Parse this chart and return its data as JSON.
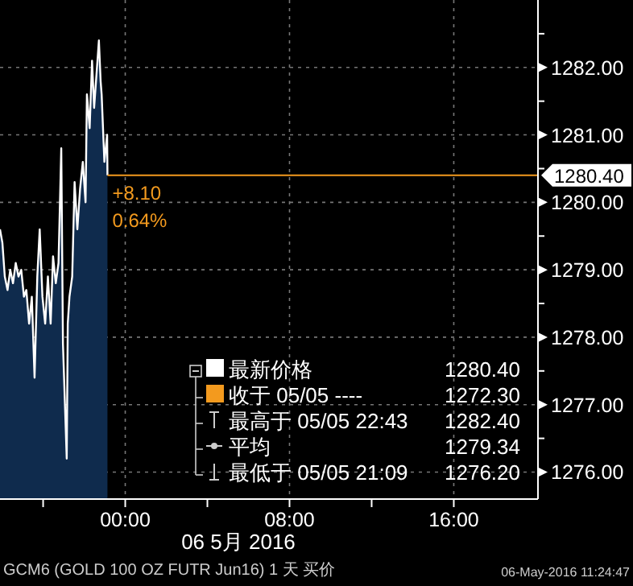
{
  "chart_data": {
    "type": "area",
    "xlabel": "06 5月 2016",
    "x": [
      "2016-05-05T17:54",
      "2016-05-05T18:01",
      "2016-05-05T18:08",
      "2016-05-05T18:16",
      "2016-05-05T18:24",
      "2016-05-05T18:32",
      "2016-05-05T18:40",
      "2016-05-05T18:48",
      "2016-05-05T18:56",
      "2016-05-05T19:04",
      "2016-05-05T19:11",
      "2016-05-05T19:19",
      "2016-05-05T19:27",
      "2016-05-05T19:35",
      "2016-05-05T19:43",
      "2016-05-05T19:50",
      "2016-05-05T19:58",
      "2016-05-05T20:06",
      "2016-05-05T20:14",
      "2016-05-05T20:22",
      "2016-05-05T20:29",
      "2016-05-05T20:37",
      "2016-05-05T20:45",
      "2016-05-05T20:53",
      "2016-05-05T20:58",
      "2016-05-05T21:09",
      "2016-05-05T21:12",
      "2016-05-05T21:17",
      "2016-05-05T21:25",
      "2016-05-05T21:32",
      "2016-05-05T21:40",
      "2016-05-05T21:48",
      "2016-05-05T21:56",
      "2016-05-05T22:04",
      "2016-05-05T22:08",
      "2016-05-05T22:16",
      "2016-05-05T22:23",
      "2016-05-05T22:29",
      "2016-05-05T22:43",
      "2016-05-05T22:48",
      "2016-05-05T22:51",
      "2016-05-05T22:59",
      "2016-05-05T23:07",
      "2016-05-05T23:08"
    ],
    "series": [
      {
        "name": "最新价格",
        "color": "#ffffff",
        "values": [
          1279.6,
          1279.4,
          1278.9,
          1278.7,
          1279,
          1278.8,
          1279.1,
          1278.9,
          1279,
          1278.6,
          1278.7,
          1278.2,
          1278.6,
          1277.4,
          1278.9,
          1279.6,
          1278.6,
          1278.2,
          1278.9,
          1278.2,
          1279.2,
          1278.8,
          1279.1,
          1280.8,
          1277.9,
          1276.2,
          1278.2,
          1278.6,
          1278.9,
          1280.3,
          1279.6,
          1280.2,
          1280.6,
          1280,
          1281.6,
          1281.1,
          1282.1,
          1281.4,
          1282.4,
          1281.8,
          1281.6,
          1280.6,
          1281,
          1280.4
        ]
      }
    ],
    "xlim": [
      "2016-05-05T17:54",
      "2016-05-06T20:06"
    ],
    "xticks": [
      {
        "value": "2016-05-05T20:00",
        "label": null
      },
      {
        "value": "2016-05-06T00:00",
        "label": "00:00"
      },
      {
        "value": "2016-05-06T04:00",
        "label": null
      },
      {
        "value": "2016-05-06T08:00",
        "label": "08:00"
      },
      {
        "value": "2016-05-06T12:00",
        "label": null
      },
      {
        "value": "2016-05-06T16:00",
        "label": "16:00"
      }
    ],
    "ylim": [
      1275.6,
      1283
    ],
    "yticks": [
      {
        "value": 1276,
        "label": "1276.00"
      },
      {
        "value": 1276.5,
        "label": null
      },
      {
        "value": 1277,
        "label": "1277.00"
      },
      {
        "value": 1277.5,
        "label": null
      },
      {
        "value": 1278,
        "label": "1278.00"
      },
      {
        "value": 1278.5,
        "label": null
      },
      {
        "value": 1279,
        "label": "1279.00"
      },
      {
        "value": 1279.5,
        "label": null
      },
      {
        "value": 1280,
        "label": "1280.00"
      },
      {
        "value": 1280.5,
        "label": null
      },
      {
        "value": 1281,
        "label": "1281.00"
      },
      {
        "value": 1281.5,
        "label": null
      },
      {
        "value": 1282,
        "label": "1282.00"
      },
      {
        "value": 1282.5,
        "label": null
      }
    ],
    "ref_lines": [
      {
        "axis": "y",
        "value": 1280.4,
        "label": "1280.40",
        "color": "#f39a1e"
      }
    ],
    "grid": true,
    "legend": "bottom right",
    "annotations": [
      "+8.10",
      "0.64%",
      "1280.40",
      "收于 05/05 ----",
      "1272.30",
      "最高于 05/05 22:43",
      "1282.40",
      "平均",
      "1279.34",
      "最低于 05/05 21:09",
      "1276.20",
      "GCM6 (GOLD 100 OZ FUTR Jun16) 1 天 买价",
      "06-May-2016 11:24:47"
    ]
  }
}
